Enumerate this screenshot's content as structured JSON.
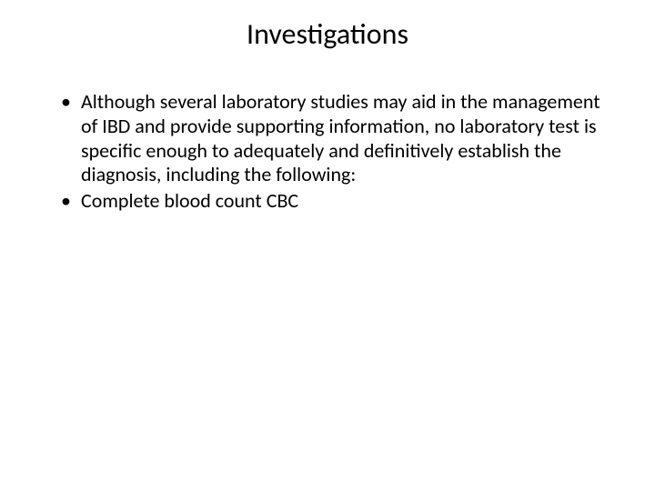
{
  "slide": {
    "title": "Investigations",
    "title_fontsize": 32,
    "body_fontsize": 22,
    "background_color": "#ffffff",
    "text_color": "#000000",
    "bullets": [
      "Although several laboratory studies may aid in the management of IBD and provide supporting information, no laboratory test is specific enough to adequately and definitively establish the diagnosis, including the following:",
      "Complete blood count CBC"
    ]
  }
}
